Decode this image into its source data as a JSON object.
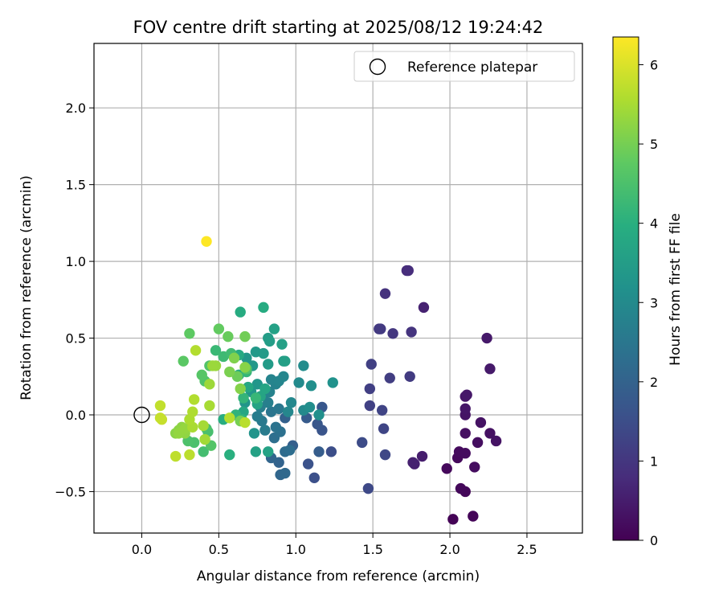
{
  "chart_data": {
    "type": "scatter",
    "title": "FOV centre drift starting at 2025/08/12 19:24:42",
    "xlabel": "Angular distance from reference (arcmin)",
    "ylabel": "Rotation from reference (arcmin)",
    "xlim": [
      -0.31,
      2.86
    ],
    "ylim": [
      -0.77,
      2.42
    ],
    "xticks": [
      0.0,
      0.5,
      1.0,
      1.5,
      2.0,
      2.5
    ],
    "xtick_labels": [
      "0.0",
      "0.5",
      "1.0",
      "1.5",
      "2.0",
      "2.5"
    ],
    "yticks": [
      -0.5,
      0.0,
      0.5,
      1.0,
      1.5,
      2.0
    ],
    "ytick_labels": [
      "−0.5",
      "0.0",
      "0.5",
      "1.0",
      "1.5",
      "2.0"
    ],
    "grid": true,
    "legend": {
      "placement": "top-right",
      "entries": [
        "Reference platepar"
      ]
    },
    "reference_point": {
      "x": 0.0,
      "y": 0.0,
      "marker": "hollow-circle",
      "color": "#000000"
    },
    "colorbar": {
      "label": "Hours from first FF file",
      "range": [
        0,
        6.35
      ],
      "ticks": [
        0,
        1,
        2,
        3,
        4,
        5,
        6
      ],
      "colormap": "viridis"
    },
    "points": [
      [
        2.02,
        -0.68,
        0.05
      ],
      [
        2.15,
        -0.66,
        0.08
      ],
      [
        2.07,
        -0.48,
        0.12
      ],
      [
        2.1,
        -0.5,
        0.1
      ],
      [
        1.98,
        -0.35,
        0.15
      ],
      [
        2.05,
        -0.28,
        0.14
      ],
      [
        2.06,
        -0.24,
        0.18
      ],
      [
        2.1,
        -0.25,
        0.2
      ],
      [
        2.16,
        -0.34,
        0.22
      ],
      [
        2.1,
        -0.12,
        0.26
      ],
      [
        2.18,
        -0.18,
        0.24
      ],
      [
        2.2,
        -0.05,
        0.3
      ],
      [
        2.26,
        -0.12,
        0.28
      ],
      [
        2.3,
        -0.17,
        0.32
      ],
      [
        2.1,
        0.0,
        0.35
      ],
      [
        2.1,
        0.04,
        0.38
      ],
      [
        2.1,
        0.12,
        0.4
      ],
      [
        2.11,
        0.13,
        0.42
      ],
      [
        2.26,
        0.3,
        0.45
      ],
      [
        2.24,
        0.5,
        0.44
      ],
      [
        1.82,
        -0.27,
        0.5
      ],
      [
        1.77,
        -0.32,
        0.55
      ],
      [
        1.76,
        -0.31,
        0.58
      ],
      [
        1.83,
        0.7,
        0.6
      ],
      [
        1.72,
        0.94,
        0.8
      ],
      [
        1.73,
        0.94,
        0.82
      ],
      [
        1.58,
        0.79,
        0.9
      ],
      [
        1.75,
        0.54,
        0.95
      ],
      [
        1.63,
        0.53,
        1.0
      ],
      [
        1.54,
        0.56,
        1.05
      ],
      [
        1.55,
        0.56,
        1.08
      ],
      [
        1.74,
        0.25,
        1.1
      ],
      [
        1.61,
        0.24,
        1.15
      ],
      [
        1.49,
        0.33,
        1.2
      ],
      [
        1.48,
        0.17,
        1.18
      ],
      [
        1.48,
        0.06,
        1.22
      ],
      [
        1.56,
        0.03,
        1.28
      ],
      [
        1.57,
        -0.09,
        1.3
      ],
      [
        1.58,
        -0.26,
        1.35
      ],
      [
        1.47,
        -0.48,
        1.4
      ],
      [
        1.43,
        -0.18,
        1.45
      ],
      [
        1.23,
        -0.24,
        1.5
      ],
      [
        1.12,
        -0.41,
        1.55
      ],
      [
        1.08,
        -0.32,
        1.6
      ],
      [
        1.17,
        -0.1,
        1.65
      ],
      [
        1.14,
        -0.06,
        1.7
      ],
      [
        1.17,
        0.05,
        1.72
      ],
      [
        1.07,
        -0.02,
        1.8
      ],
      [
        1.15,
        -0.24,
        1.85
      ],
      [
        0.98,
        -0.2,
        1.9
      ],
      [
        0.93,
        -0.02,
        1.95
      ],
      [
        0.89,
        -0.31,
        2.0
      ],
      [
        0.84,
        -0.28,
        2.05
      ],
      [
        0.9,
        -0.39,
        2.1
      ],
      [
        0.93,
        -0.38,
        2.15
      ],
      [
        0.93,
        -0.24,
        2.2
      ],
      [
        0.96,
        -0.23,
        2.25
      ],
      [
        0.86,
        -0.15,
        2.3
      ],
      [
        0.9,
        -0.11,
        2.35
      ],
      [
        0.87,
        -0.08,
        2.4
      ],
      [
        0.84,
        0.02,
        2.45
      ],
      [
        0.89,
        0.04,
        2.5
      ],
      [
        0.78,
        -0.04,
        2.55
      ],
      [
        0.8,
        -0.1,
        2.6
      ],
      [
        0.75,
        -0.01,
        2.65
      ],
      [
        0.77,
        0.05,
        2.7
      ],
      [
        0.82,
        0.08,
        2.72
      ],
      [
        0.79,
        0.13,
        2.75
      ],
      [
        0.83,
        0.15,
        2.78
      ],
      [
        0.87,
        0.2,
        2.8
      ],
      [
        0.84,
        0.23,
        2.85
      ],
      [
        0.89,
        0.22,
        2.88
      ],
      [
        0.92,
        0.25,
        2.9
      ],
      [
        0.95,
        0.02,
        2.92
      ],
      [
        0.97,
        0.08,
        2.95
      ],
      [
        1.05,
        0.03,
        2.98
      ],
      [
        1.02,
        0.21,
        3.0
      ],
      [
        1.05,
        0.32,
        3.05
      ],
      [
        1.09,
        0.05,
        3.1
      ],
      [
        1.1,
        0.19,
        3.12
      ],
      [
        1.15,
        0.0,
        3.15
      ],
      [
        1.24,
        0.21,
        3.2
      ],
      [
        0.73,
        -0.12,
        3.25
      ],
      [
        0.67,
        0.08,
        3.28
      ],
      [
        0.71,
        0.15,
        3.3
      ],
      [
        0.75,
        0.2,
        3.32
      ],
      [
        0.68,
        0.37,
        3.35
      ],
      [
        0.72,
        0.32,
        3.38
      ],
      [
        0.74,
        0.41,
        3.4
      ],
      [
        0.79,
        0.4,
        3.42
      ],
      [
        0.82,
        0.33,
        3.45
      ],
      [
        0.82,
        0.5,
        3.48
      ],
      [
        0.83,
        0.48,
        3.5
      ],
      [
        0.92,
        0.35,
        3.52
      ],
      [
        0.93,
        0.35,
        3.55
      ],
      [
        0.91,
        0.46,
        3.58
      ],
      [
        0.86,
        0.56,
        3.6
      ],
      [
        0.74,
        -0.24,
        3.62
      ],
      [
        0.82,
        -0.24,
        3.65
      ],
      [
        0.75,
        0.07,
        3.68
      ],
      [
        0.77,
        0.12,
        3.7
      ],
      [
        0.8,
        0.17,
        3.72
      ],
      [
        0.66,
        0.02,
        3.75
      ],
      [
        0.69,
        0.18,
        3.78
      ],
      [
        0.63,
        0.26,
        3.8
      ],
      [
        0.63,
        0.39,
        3.85
      ],
      [
        0.64,
        0.67,
        3.88
      ],
      [
        0.79,
        0.7,
        3.9
      ],
      [
        0.53,
        -0.03,
        3.95
      ],
      [
        0.57,
        -0.26,
        4.0
      ],
      [
        0.65,
        -0.03,
        4.05
      ],
      [
        0.61,
        0.0,
        4.1
      ],
      [
        0.66,
        0.11,
        4.15
      ],
      [
        0.68,
        0.28,
        4.18
      ],
      [
        0.74,
        0.11,
        4.2
      ],
      [
        0.48,
        0.42,
        4.25
      ],
      [
        0.53,
        0.38,
        4.3
      ],
      [
        0.58,
        0.4,
        4.35
      ],
      [
        0.4,
        -0.24,
        4.4
      ],
      [
        0.43,
        -0.11,
        4.45
      ],
      [
        0.42,
        -0.09,
        4.48
      ],
      [
        0.34,
        -0.18,
        4.5
      ],
      [
        0.3,
        -0.17,
        4.52
      ],
      [
        0.41,
        0.22,
        4.55
      ],
      [
        0.44,
        0.32,
        4.58
      ],
      [
        0.68,
        0.3,
        4.6
      ],
      [
        0.45,
        -0.2,
        4.62
      ],
      [
        0.39,
        0.26,
        4.65
      ],
      [
        0.27,
        0.35,
        4.7
      ],
      [
        0.31,
        0.53,
        4.75
      ],
      [
        0.5,
        0.56,
        4.8
      ],
      [
        0.56,
        0.51,
        4.85
      ],
      [
        0.62,
        0.25,
        4.9
      ],
      [
        0.67,
        0.51,
        4.95
      ],
      [
        0.64,
        -0.04,
        5.0
      ],
      [
        0.57,
        0.28,
        5.05
      ],
      [
        0.6,
        0.37,
        5.1
      ],
      [
        0.64,
        0.17,
        5.15
      ],
      [
        0.67,
        0.31,
        5.18
      ],
      [
        0.22,
        -0.12,
        5.2
      ],
      [
        0.24,
        -0.1,
        5.22
      ],
      [
        0.26,
        -0.08,
        5.24
      ],
      [
        0.28,
        -0.12,
        5.26
      ],
      [
        0.24,
        -0.12,
        5.3
      ],
      [
        0.28,
        -0.09,
        5.32
      ],
      [
        0.48,
        0.32,
        5.35
      ],
      [
        0.46,
        0.32,
        5.38
      ],
      [
        0.44,
        0.2,
        5.4
      ],
      [
        0.41,
        -0.16,
        5.45
      ],
      [
        0.4,
        -0.07,
        5.48
      ],
      [
        0.44,
        0.06,
        5.5
      ],
      [
        0.33,
        -0.08,
        5.52
      ],
      [
        0.31,
        -0.03,
        5.55
      ],
      [
        0.33,
        0.02,
        5.58
      ],
      [
        0.34,
        0.1,
        5.6
      ],
      [
        0.35,
        0.42,
        5.62
      ],
      [
        0.57,
        -0.02,
        5.65
      ],
      [
        0.67,
        -0.05,
        5.68
      ],
      [
        0.31,
        -0.26,
        5.7
      ],
      [
        0.22,
        -0.27,
        5.72
      ],
      [
        0.12,
        0.06,
        5.75
      ],
      [
        0.12,
        -0.02,
        5.78
      ],
      [
        0.13,
        -0.03,
        5.8
      ],
      [
        0.42,
        1.13,
        6.35
      ]
    ]
  }
}
